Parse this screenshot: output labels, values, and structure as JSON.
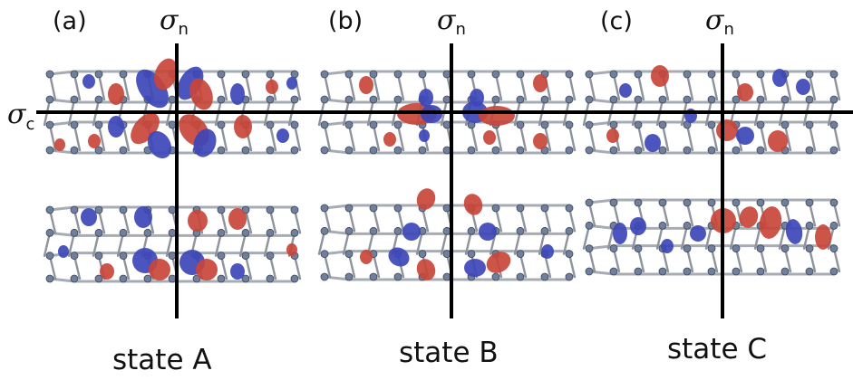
{
  "panels": [
    {
      "label": "(a)",
      "sigma_n": {
        "symbol": "σ",
        "subscript": "n"
      },
      "state": "state A"
    },
    {
      "label": "(b)",
      "sigma_n": {
        "symbol": "σ",
        "subscript": "n"
      },
      "state": "state B"
    },
    {
      "label": "(c)",
      "sigma_n": {
        "symbol": "σ",
        "subscript": "n"
      },
      "state": "state C"
    }
  ],
  "sigma_c": {
    "symbol": "σ",
    "subscript": "c"
  },
  "colors": {
    "orbital_red": "#c8453a",
    "orbital_blue": "#3d46b8",
    "lattice": "#a7acb4",
    "atom": "#6f7f9c",
    "axis": "#000000"
  }
}
